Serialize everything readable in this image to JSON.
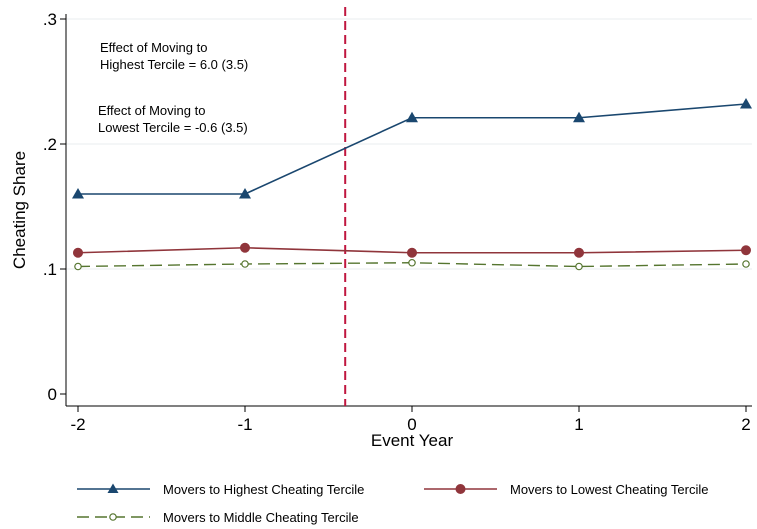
{
  "chart_data": {
    "type": "line",
    "xlabel": "Event Year",
    "ylabel": "Cheating Share",
    "x": [
      -2,
      -1,
      0,
      1,
      2
    ],
    "x_ticks": [
      -2,
      -1,
      0,
      1,
      2
    ],
    "x_tick_labels": [
      "-2",
      "-1",
      "0",
      "1",
      "2"
    ],
    "xlim": [
      -2.05,
      2.02
    ],
    "y_ticks": [
      0,
      0.1,
      0.2,
      0.3
    ],
    "y_tick_labels": [
      "0",
      ".1",
      ".2",
      ".3"
    ],
    "ylim": [
      -0.01,
      0.3
    ],
    "grid": "horizontal",
    "vline": {
      "x": -0.4,
      "color": "#c0163f",
      "style": "dashed"
    },
    "annotations": [
      {
        "line1": "Effect of Moving to",
        "line2": "Highest Tercile = 6.0 (3.5)"
      },
      {
        "line1": "Effect of Moving to",
        "line2": "Lowest Tercile = -0.6 (3.5)"
      }
    ],
    "legend_position": "bottom",
    "series": [
      {
        "name": "Movers to Highest Cheating Tercile",
        "values": [
          0.16,
          0.16,
          0.221,
          0.221,
          0.232
        ],
        "color": "#1a476f",
        "marker": "triangle",
        "dash": "solid"
      },
      {
        "name": "Movers to Lowest Cheating Tercile",
        "values": [
          0.113,
          0.117,
          0.113,
          0.113,
          0.115
        ],
        "color": "#90353b",
        "marker": "circle",
        "dash": "solid"
      },
      {
        "name": "Movers to Middle Cheating Tercile",
        "values": [
          0.102,
          0.104,
          0.105,
          0.102,
          0.104
        ],
        "color": "#55752f",
        "marker": "hollow-circle",
        "dash": "dashed"
      }
    ]
  }
}
